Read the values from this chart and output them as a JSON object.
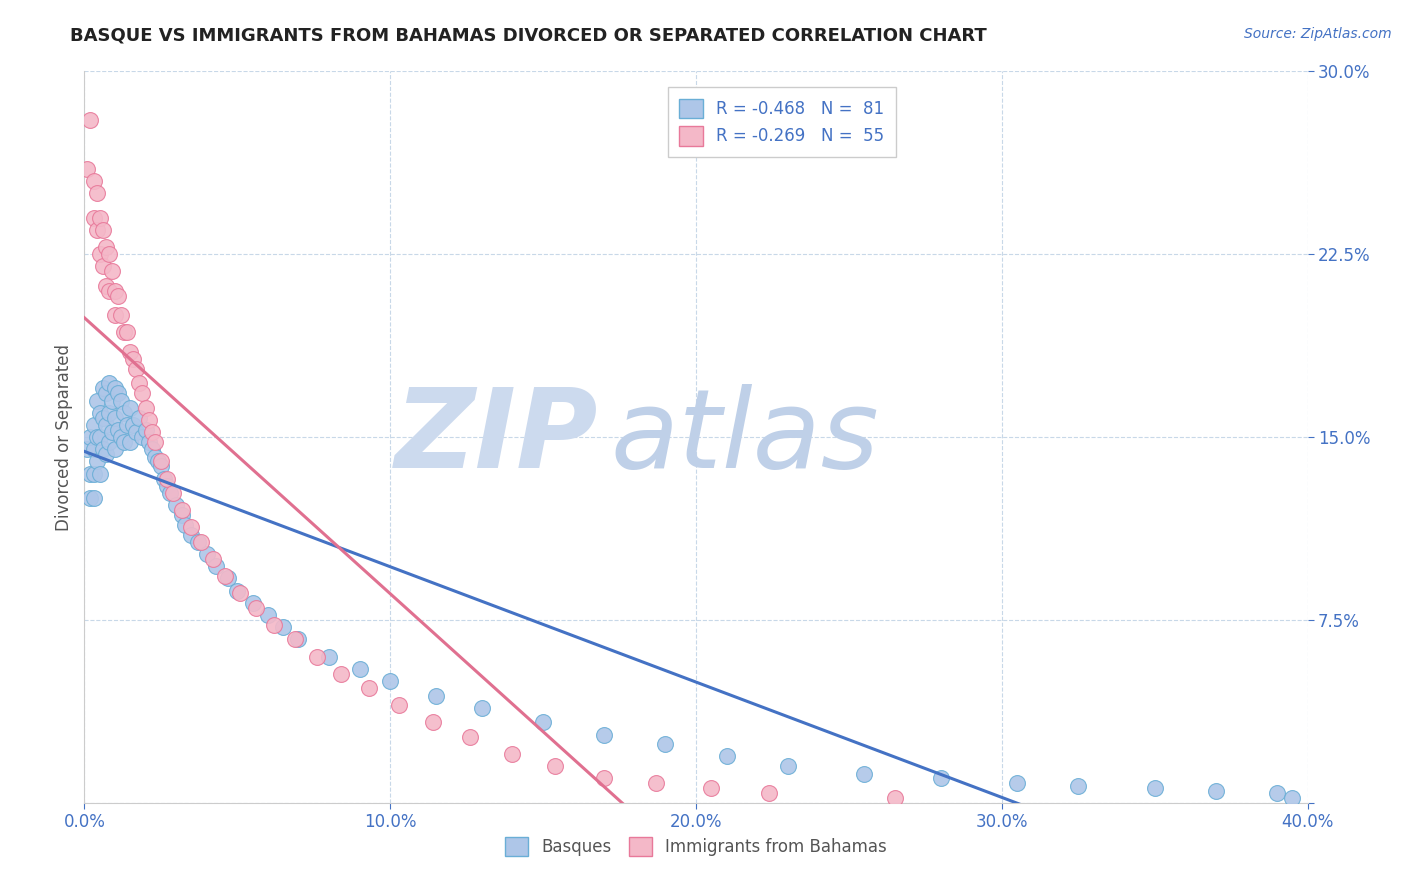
{
  "title": "BASQUE VS IMMIGRANTS FROM BAHAMAS DIVORCED OR SEPARATED CORRELATION CHART",
  "source": "Source: ZipAtlas.com",
  "ylabel": "Divorced or Separated",
  "xlim": [
    0.0,
    0.4
  ],
  "ylim": [
    0.0,
    0.3
  ],
  "x_ticks": [
    0.0,
    0.1,
    0.2,
    0.3,
    0.4
  ],
  "x_tick_labels": [
    "0.0%",
    "10.0%",
    "20.0%",
    "30.0%",
    "40.0%"
  ],
  "y_ticks": [
    0.0,
    0.075,
    0.15,
    0.225,
    0.3
  ],
  "y_tick_labels": [
    "",
    "7.5%",
    "15.0%",
    "22.5%",
    "30.0%"
  ],
  "legend_label1": "R = -0.468   N =  81",
  "legend_label2": "R = -0.269   N =  55",
  "dot_color1": "#aec6e8",
  "dot_color2": "#f4b8c8",
  "dot_edge_color1": "#6aaed6",
  "dot_edge_color2": "#e8799a",
  "line_color1": "#4472c4",
  "line_color2": "#e07090",
  "title_color": "#222222",
  "axis_label_color": "#555555",
  "tick_color": "#4472c4",
  "grid_color": "#c8d8e8",
  "basques_x": [
    0.001,
    0.002,
    0.002,
    0.002,
    0.003,
    0.003,
    0.003,
    0.003,
    0.004,
    0.004,
    0.004,
    0.005,
    0.005,
    0.005,
    0.006,
    0.006,
    0.006,
    0.007,
    0.007,
    0.007,
    0.008,
    0.008,
    0.008,
    0.009,
    0.009,
    0.01,
    0.01,
    0.01,
    0.011,
    0.011,
    0.012,
    0.012,
    0.013,
    0.013,
    0.014,
    0.015,
    0.015,
    0.016,
    0.017,
    0.018,
    0.019,
    0.02,
    0.021,
    0.022,
    0.023,
    0.024,
    0.025,
    0.026,
    0.027,
    0.028,
    0.03,
    0.032,
    0.033,
    0.035,
    0.037,
    0.04,
    0.043,
    0.047,
    0.05,
    0.055,
    0.06,
    0.065,
    0.07,
    0.08,
    0.09,
    0.1,
    0.115,
    0.13,
    0.15,
    0.17,
    0.19,
    0.21,
    0.23,
    0.255,
    0.28,
    0.305,
    0.325,
    0.35,
    0.37,
    0.39,
    0.395
  ],
  "basques_y": [
    0.145,
    0.135,
    0.15,
    0.125,
    0.155,
    0.145,
    0.135,
    0.125,
    0.165,
    0.15,
    0.14,
    0.16,
    0.15,
    0.135,
    0.17,
    0.158,
    0.145,
    0.168,
    0.155,
    0.143,
    0.172,
    0.16,
    0.148,
    0.165,
    0.152,
    0.17,
    0.158,
    0.145,
    0.168,
    0.153,
    0.165,
    0.15,
    0.16,
    0.148,
    0.155,
    0.162,
    0.148,
    0.155,
    0.152,
    0.158,
    0.15,
    0.153,
    0.148,
    0.145,
    0.142,
    0.14,
    0.138,
    0.133,
    0.13,
    0.127,
    0.122,
    0.118,
    0.114,
    0.11,
    0.107,
    0.102,
    0.097,
    0.092,
    0.087,
    0.082,
    0.077,
    0.072,
    0.067,
    0.06,
    0.055,
    0.05,
    0.044,
    0.039,
    0.033,
    0.028,
    0.024,
    0.019,
    0.015,
    0.012,
    0.01,
    0.008,
    0.007,
    0.006,
    0.005,
    0.004,
    0.002
  ],
  "bahamas_x": [
    0.001,
    0.002,
    0.003,
    0.003,
    0.004,
    0.004,
    0.005,
    0.005,
    0.006,
    0.006,
    0.007,
    0.007,
    0.008,
    0.008,
    0.009,
    0.01,
    0.01,
    0.011,
    0.012,
    0.013,
    0.014,
    0.015,
    0.016,
    0.017,
    0.018,
    0.019,
    0.02,
    0.021,
    0.022,
    0.023,
    0.025,
    0.027,
    0.029,
    0.032,
    0.035,
    0.038,
    0.042,
    0.046,
    0.051,
    0.056,
    0.062,
    0.069,
    0.076,
    0.084,
    0.093,
    0.103,
    0.114,
    0.126,
    0.14,
    0.154,
    0.17,
    0.187,
    0.205,
    0.224,
    0.265
  ],
  "bahamas_y": [
    0.26,
    0.28,
    0.24,
    0.255,
    0.25,
    0.235,
    0.24,
    0.225,
    0.235,
    0.22,
    0.228,
    0.212,
    0.225,
    0.21,
    0.218,
    0.21,
    0.2,
    0.208,
    0.2,
    0.193,
    0.193,
    0.185,
    0.182,
    0.178,
    0.172,
    0.168,
    0.162,
    0.157,
    0.152,
    0.148,
    0.14,
    0.133,
    0.127,
    0.12,
    0.113,
    0.107,
    0.1,
    0.093,
    0.086,
    0.08,
    0.073,
    0.067,
    0.06,
    0.053,
    0.047,
    0.04,
    0.033,
    0.027,
    0.02,
    0.015,
    0.01,
    0.008,
    0.006,
    0.004,
    0.002
  ]
}
